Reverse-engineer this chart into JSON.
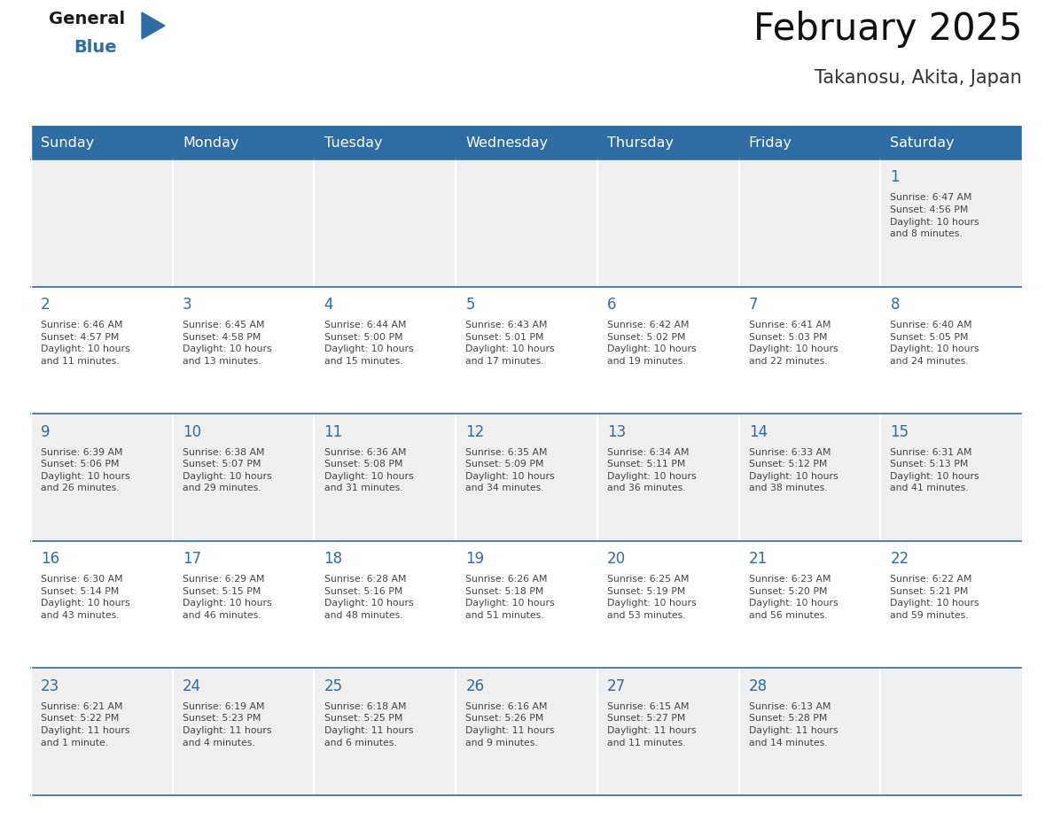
{
  "title": "February 2025",
  "subtitle": "Takanosu, Akita, Japan",
  "header_bg": "#2E6DA4",
  "header_text_color": "#FFFFFF",
  "cell_bg_odd": "#EFEFEF",
  "cell_bg_even": "#FFFFFF",
  "day_number_color": "#2E6DA4",
  "text_color": "#444444",
  "line_color": "#2E6DA4",
  "days_of_week": [
    "Sunday",
    "Monday",
    "Tuesday",
    "Wednesday",
    "Thursday",
    "Friday",
    "Saturday"
  ],
  "weeks": [
    [
      {
        "day": null,
        "info": null
      },
      {
        "day": null,
        "info": null
      },
      {
        "day": null,
        "info": null
      },
      {
        "day": null,
        "info": null
      },
      {
        "day": null,
        "info": null
      },
      {
        "day": null,
        "info": null
      },
      {
        "day": 1,
        "info": "Sunrise: 6:47 AM\nSunset: 4:56 PM\nDaylight: 10 hours\nand 8 minutes."
      }
    ],
    [
      {
        "day": 2,
        "info": "Sunrise: 6:46 AM\nSunset: 4:57 PM\nDaylight: 10 hours\nand 11 minutes."
      },
      {
        "day": 3,
        "info": "Sunrise: 6:45 AM\nSunset: 4:58 PM\nDaylight: 10 hours\nand 13 minutes."
      },
      {
        "day": 4,
        "info": "Sunrise: 6:44 AM\nSunset: 5:00 PM\nDaylight: 10 hours\nand 15 minutes."
      },
      {
        "day": 5,
        "info": "Sunrise: 6:43 AM\nSunset: 5:01 PM\nDaylight: 10 hours\nand 17 minutes."
      },
      {
        "day": 6,
        "info": "Sunrise: 6:42 AM\nSunset: 5:02 PM\nDaylight: 10 hours\nand 19 minutes."
      },
      {
        "day": 7,
        "info": "Sunrise: 6:41 AM\nSunset: 5:03 PM\nDaylight: 10 hours\nand 22 minutes."
      },
      {
        "day": 8,
        "info": "Sunrise: 6:40 AM\nSunset: 5:05 PM\nDaylight: 10 hours\nand 24 minutes."
      }
    ],
    [
      {
        "day": 9,
        "info": "Sunrise: 6:39 AM\nSunset: 5:06 PM\nDaylight: 10 hours\nand 26 minutes."
      },
      {
        "day": 10,
        "info": "Sunrise: 6:38 AM\nSunset: 5:07 PM\nDaylight: 10 hours\nand 29 minutes."
      },
      {
        "day": 11,
        "info": "Sunrise: 6:36 AM\nSunset: 5:08 PM\nDaylight: 10 hours\nand 31 minutes."
      },
      {
        "day": 12,
        "info": "Sunrise: 6:35 AM\nSunset: 5:09 PM\nDaylight: 10 hours\nand 34 minutes."
      },
      {
        "day": 13,
        "info": "Sunrise: 6:34 AM\nSunset: 5:11 PM\nDaylight: 10 hours\nand 36 minutes."
      },
      {
        "day": 14,
        "info": "Sunrise: 6:33 AM\nSunset: 5:12 PM\nDaylight: 10 hours\nand 38 minutes."
      },
      {
        "day": 15,
        "info": "Sunrise: 6:31 AM\nSunset: 5:13 PM\nDaylight: 10 hours\nand 41 minutes."
      }
    ],
    [
      {
        "day": 16,
        "info": "Sunrise: 6:30 AM\nSunset: 5:14 PM\nDaylight: 10 hours\nand 43 minutes."
      },
      {
        "day": 17,
        "info": "Sunrise: 6:29 AM\nSunset: 5:15 PM\nDaylight: 10 hours\nand 46 minutes."
      },
      {
        "day": 18,
        "info": "Sunrise: 6:28 AM\nSunset: 5:16 PM\nDaylight: 10 hours\nand 48 minutes."
      },
      {
        "day": 19,
        "info": "Sunrise: 6:26 AM\nSunset: 5:18 PM\nDaylight: 10 hours\nand 51 minutes."
      },
      {
        "day": 20,
        "info": "Sunrise: 6:25 AM\nSunset: 5:19 PM\nDaylight: 10 hours\nand 53 minutes."
      },
      {
        "day": 21,
        "info": "Sunrise: 6:23 AM\nSunset: 5:20 PM\nDaylight: 10 hours\nand 56 minutes."
      },
      {
        "day": 22,
        "info": "Sunrise: 6:22 AM\nSunset: 5:21 PM\nDaylight: 10 hours\nand 59 minutes."
      }
    ],
    [
      {
        "day": 23,
        "info": "Sunrise: 6:21 AM\nSunset: 5:22 PM\nDaylight: 11 hours\nand 1 minute."
      },
      {
        "day": 24,
        "info": "Sunrise: 6:19 AM\nSunset: 5:23 PM\nDaylight: 11 hours\nand 4 minutes."
      },
      {
        "day": 25,
        "info": "Sunrise: 6:18 AM\nSunset: 5:25 PM\nDaylight: 11 hours\nand 6 minutes."
      },
      {
        "day": 26,
        "info": "Sunrise: 6:16 AM\nSunset: 5:26 PM\nDaylight: 11 hours\nand 9 minutes."
      },
      {
        "day": 27,
        "info": "Sunrise: 6:15 AM\nSunset: 5:27 PM\nDaylight: 11 hours\nand 11 minutes."
      },
      {
        "day": 28,
        "info": "Sunrise: 6:13 AM\nSunset: 5:28 PM\nDaylight: 11 hours\nand 14 minutes."
      },
      {
        "day": null,
        "info": null
      }
    ]
  ],
  "logo_general_color": "#1a1a1a",
  "logo_blue_color": "#2E6DA4",
  "logo_triangle_color": "#2E6DA4"
}
